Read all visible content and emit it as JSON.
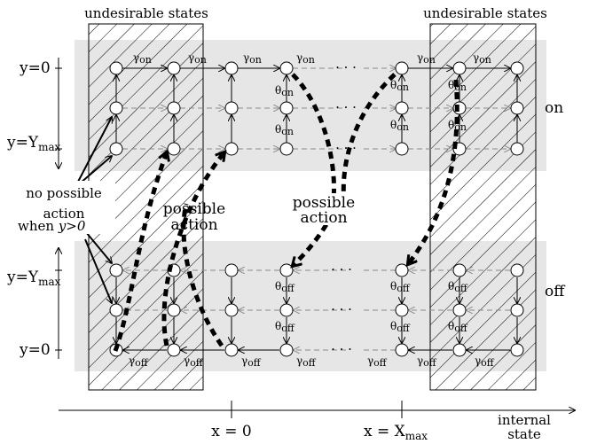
{
  "regions": {
    "left_undesirable": "undesirable states",
    "right_undesirable": "undesirable states"
  },
  "modes": {
    "on": "on",
    "off": "off"
  },
  "y_axis": {
    "on_top": "y=0",
    "on_bottom": "y=Y",
    "on_bottom_sub": "max",
    "off_top": "y=Y",
    "off_top_sub": "max",
    "off_bottom": "y=0"
  },
  "x_axis": {
    "label": "internal",
    "label_2": "state",
    "x0": "x = 0",
    "xmax": "x = X",
    "xmax_sub": "max"
  },
  "annotations": {
    "no_possible_1": "no possible",
    "no_possible_2": "action",
    "when_1": "when ",
    "when_2": "y>0",
    "possible_action_left_1": "possible",
    "possible_action_left_2": "action",
    "possible_action_mid_1": "possible",
    "possible_action_mid_2": "action"
  },
  "rates": {
    "gamma": "γ",
    "on_sub": "on",
    "off_sub": "off",
    "theta": "θ"
  },
  "dots": "· · ·"
}
